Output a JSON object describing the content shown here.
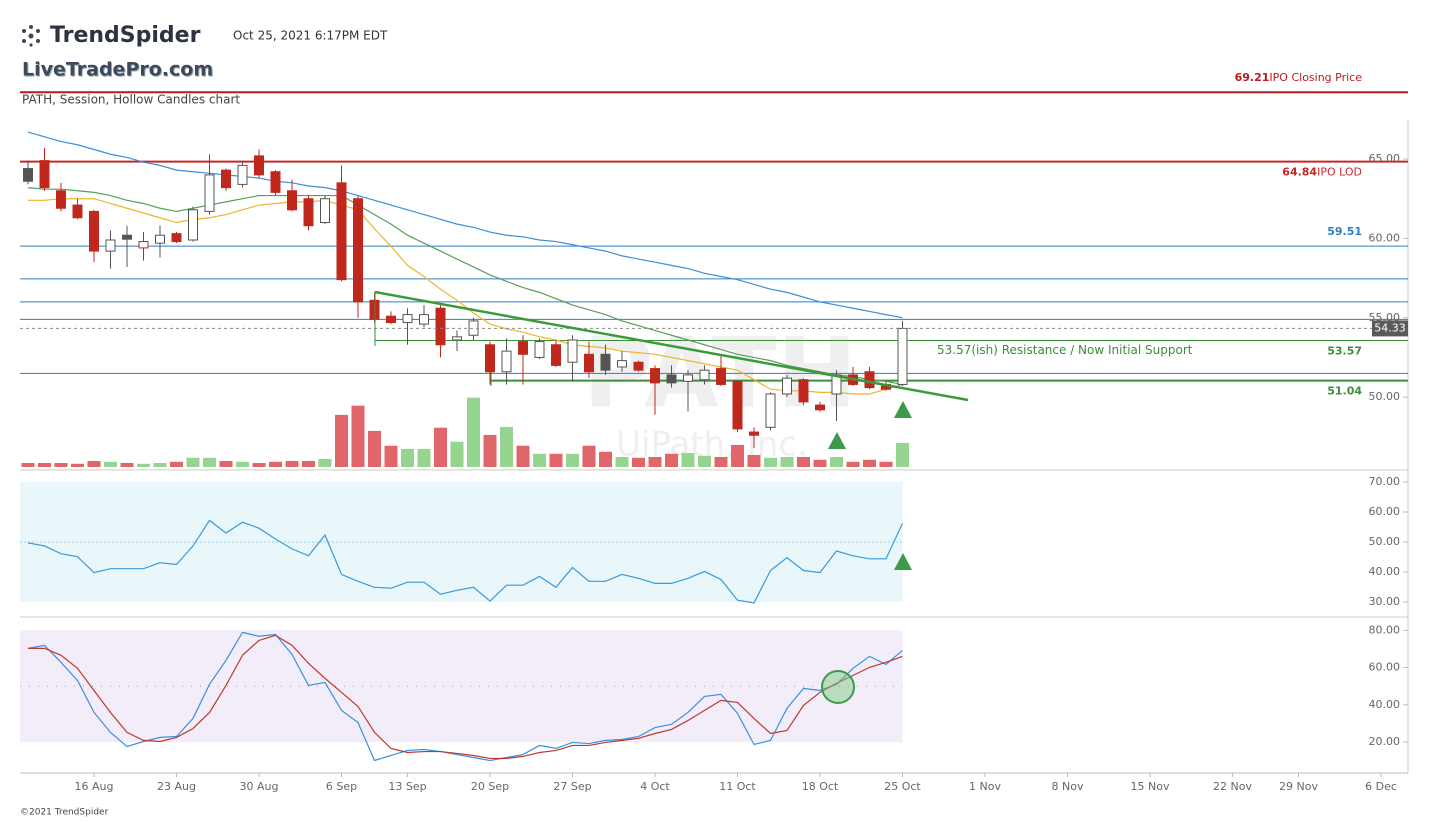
{
  "header": {
    "brand": "TrendSpider",
    "timestamp": "Oct 25, 2021 6:17PM EDT",
    "site": "LiveTradePro.com",
    "chart_label": "PATH, Session, Hollow Candles chart",
    "symbol_watermark": "PATH",
    "company_watermark": "UiPath, Inc.",
    "footer": "©2021 TrendSpider"
  },
  "chart_data": [
    {
      "type": "candlestick",
      "categories": [
        null,
        null,
        null,
        null,
        "16 Aug",
        null,
        null,
        null,
        null,
        "23 Aug",
        null,
        null,
        null,
        null,
        "30 Aug",
        null,
        null,
        null,
        null,
        "6 Sep",
        null,
        null,
        null,
        "13 Sep",
        null,
        null,
        null,
        null,
        "20 Sep",
        null,
        null,
        null,
        null,
        "27 Sep",
        null,
        null,
        null,
        null,
        "4 Oct",
        null,
        null,
        null,
        null,
        "11 Oct",
        null,
        null,
        null,
        null,
        "18 Oct",
        null,
        null,
        null,
        null,
        "25 Oct",
        null,
        null,
        null,
        null,
        "1 Nov",
        null,
        null,
        null,
        null,
        "8 Nov",
        null,
        null,
        null,
        null,
        "15 Nov",
        null,
        null,
        null,
        null,
        "22 Nov",
        null,
        null,
        null,
        "29 Nov",
        null,
        null,
        null,
        null,
        "6 Dec"
      ],
      "open": [
        64.4,
        64.9,
        63.0,
        62.1,
        61.7,
        59.2,
        60.2,
        59.4,
        59.7,
        60.3,
        59.9,
        61.7,
        64.3,
        63.4,
        65.2,
        64.2,
        63.0,
        62.5,
        61.0,
        63.5,
        62.5,
        56.1,
        55.1,
        54.7,
        54.6,
        55.6,
        53.6,
        53.9,
        53.3,
        51.6,
        53.5,
        52.5,
        53.3,
        52.2,
        52.7,
        52.7,
        51.9,
        52.2,
        51.8,
        51.4,
        51.0,
        51.1,
        51.8,
        51.0,
        47.8,
        48.1,
        50.2,
        51.1,
        49.5,
        50.2,
        51.4,
        51.6,
        50.8,
        50.8,
        null,
        null,
        null,
        null,
        null,
        null,
        null,
        null,
        null,
        null,
        null,
        null,
        null,
        null,
        null,
        null,
        null,
        null,
        null,
        null,
        null,
        null,
        null,
        null,
        null,
        null,
        null,
        null,
        null
      ],
      "high": [
        64.9,
        65.7,
        63.5,
        62.5,
        61.8,
        60.5,
        60.8,
        60.4,
        60.8,
        60.4,
        62.0,
        65.3,
        64.4,
        64.8,
        65.6,
        64.3,
        63.7,
        62.7,
        62.7,
        64.6,
        62.7,
        56.6,
        55.4,
        55.6,
        55.8,
        55.8,
        54.2,
        55.0,
        53.5,
        53.7,
        53.9,
        53.7,
        53.6,
        53.9,
        53.5,
        53.3,
        52.9,
        52.3,
        52.0,
        52.0,
        51.7,
        52.0,
        52.6,
        51.1,
        48.1,
        50.3,
        51.4,
        51.2,
        49.7,
        51.7,
        51.9,
        51.9,
        51.0,
        54.8,
        null,
        null,
        null,
        null,
        null,
        null,
        null,
        null,
        null,
        null,
        null,
        null,
        null,
        null,
        null,
        null,
        null,
        null,
        null,
        null,
        null,
        null,
        null,
        null,
        null,
        null,
        null,
        null,
        null
      ],
      "low": [
        63.4,
        63.0,
        61.7,
        61.2,
        58.5,
        58.1,
        58.2,
        58.6,
        58.8,
        59.7,
        59.8,
        61.5,
        63.0,
        63.2,
        63.8,
        62.7,
        61.7,
        60.5,
        60.9,
        57.3,
        55.0,
        54.7,
        54.6,
        53.3,
        54.4,
        52.5,
        52.9,
        53.6,
        50.8,
        50.8,
        50.8,
        52.4,
        51.9,
        51.0,
        51.2,
        51.4,
        51.6,
        51.6,
        48.9,
        50.6,
        49.1,
        50.8,
        50.7,
        47.8,
        46.8,
        47.9,
        50.0,
        49.5,
        49.1,
        48.5,
        50.7,
        50.5,
        50.4,
        50.7,
        null,
        null,
        null,
        null,
        null,
        null,
        null,
        null,
        null,
        null,
        null,
        null,
        null,
        null,
        null,
        null,
        null,
        null,
        null,
        null,
        null,
        null,
        null,
        null,
        null,
        null,
        null,
        null,
        null
      ],
      "close": [
        63.6,
        63.2,
        61.9,
        61.3,
        59.2,
        59.9,
        59.95,
        59.8,
        60.2,
        59.8,
        61.8,
        64.0,
        63.2,
        64.6,
        64.0,
        62.9,
        61.8,
        60.8,
        62.5,
        57.4,
        56.0,
        54.9,
        54.7,
        55.2,
        55.2,
        53.3,
        53.8,
        54.8,
        51.6,
        52.9,
        52.7,
        53.5,
        52.0,
        53.6,
        51.6,
        51.7,
        52.3,
        51.7,
        50.9,
        50.9,
        51.4,
        51.7,
        50.8,
        48.0,
        47.6,
        50.2,
        51.2,
        49.7,
        49.2,
        51.4,
        50.8,
        50.6,
        50.5,
        54.33,
        null,
        null,
        null,
        null,
        null,
        null,
        null,
        null,
        null,
        null,
        null,
        null,
        null,
        null,
        null,
        null,
        null,
        null,
        null,
        null,
        null,
        null,
        null,
        null,
        null,
        null,
        null,
        null,
        null
      ],
      "volume": [
        1,
        1,
        1,
        0.8,
        1.5,
        1.3,
        1,
        0.8,
        1,
        1.3,
        2.3,
        2.3,
        1.5,
        1.3,
        1,
        1.3,
        1.5,
        1.5,
        2,
        13,
        15.3,
        9,
        5.3,
        4.5,
        4.5,
        9.8,
        6.3,
        17.3,
        8,
        10,
        5.3,
        3.3,
        3.3,
        3.3,
        5.3,
        3.8,
        2.5,
        2.3,
        2.5,
        3.3,
        3.5,
        2.8,
        2.5,
        5.5,
        3,
        2.3,
        2.5,
        2.5,
        1.8,
        2.5,
        1.3,
        1.8,
        1.3,
        6,
        null,
        null,
        null,
        null,
        null,
        null,
        null,
        null,
        null,
        null,
        null,
        null,
        null,
        null,
        null,
        null,
        null,
        null,
        null,
        null,
        null,
        null,
        null,
        null,
        null,
        null,
        null,
        null,
        null
      ],
      "volume_ylim": [
        0,
        95
      ],
      "up_color": "#555555",
      "down_color": "#c0281e",
      "volume_up_color": "#95d590",
      "volume_down_color": "#e0666a",
      "overlays": [
        {
          "color": "#3b8fd9",
          "values": [
            66.7,
            66.4,
            66.1,
            65.9,
            65.6,
            65.3,
            65.1,
            64.8,
            64.6,
            64.3,
            64.2,
            64.1,
            64.0,
            63.9,
            63.8,
            63.6,
            63.5,
            63.3,
            63.2,
            63.0,
            62.7,
            62.4,
            62.1,
            61.8,
            61.5,
            61.2,
            60.9,
            60.7,
            60.4,
            60.2,
            60.1,
            59.9,
            59.8,
            59.6,
            59.4,
            59.2,
            58.9,
            58.7,
            58.5,
            58.3,
            58.1,
            57.8,
            57.6,
            57.4,
            57.1,
            56.8,
            56.6,
            56.3,
            56.0,
            55.8,
            55.6,
            55.4,
            55.2,
            55.0,
            null,
            null,
            null,
            null,
            null,
            null,
            null,
            null,
            null,
            null,
            null,
            null,
            null,
            null,
            null,
            null,
            null,
            null,
            null,
            null,
            null,
            null,
            null,
            null,
            null,
            null,
            null,
            null,
            null
          ]
        },
        {
          "color": "#5a9e5a",
          "values": [
            63.2,
            63.1,
            63.1,
            63.0,
            62.9,
            62.7,
            62.4,
            62.2,
            61.9,
            61.7,
            61.9,
            62.1,
            62.3,
            62.5,
            62.7,
            62.7,
            62.7,
            62.7,
            62.7,
            62.7,
            62.1,
            61.5,
            60.9,
            60.2,
            59.7,
            59.2,
            58.7,
            58.2,
            57.7,
            57.3,
            56.9,
            56.6,
            56.2,
            55.8,
            55.5,
            55.2,
            54.8,
            54.5,
            54.2,
            53.9,
            53.6,
            53.3,
            53.0,
            52.7,
            52.5,
            52.3,
            52.0,
            51.8,
            51.6,
            51.4,
            51.3,
            51.1,
            51.0,
            50.8,
            null,
            null,
            null,
            null,
            null,
            null,
            null,
            null,
            null,
            null,
            null,
            null,
            null,
            null,
            null,
            null,
            null,
            null,
            null,
            null,
            null,
            null,
            null,
            null,
            null,
            null,
            null,
            null,
            null
          ]
        },
        {
          "color": "#f0b429",
          "values": [
            62.4,
            62.4,
            62.5,
            62.5,
            62.5,
            62.2,
            61.9,
            61.6,
            61.3,
            61.0,
            61.2,
            61.3,
            61.5,
            61.8,
            62.1,
            62.2,
            62.3,
            62.3,
            62.4,
            62.1,
            61.8,
            60.6,
            59.5,
            58.3,
            57.6,
            56.8,
            56.1,
            55.3,
            54.6,
            54.3,
            54.1,
            53.8,
            53.6,
            53.3,
            53.2,
            53.1,
            52.9,
            52.8,
            52.7,
            52.5,
            52.3,
            52.1,
            51.9,
            51.7,
            51.1,
            50.5,
            50.4,
            50.4,
            50.3,
            50.3,
            50.2,
            50.2,
            50.5,
            50.8,
            null,
            null,
            null,
            null,
            null,
            null,
            null,
            null,
            null,
            null,
            null,
            null,
            null,
            null,
            null,
            null,
            null,
            null,
            null,
            null,
            null,
            null,
            null,
            null,
            null,
            null,
            null,
            null,
            null
          ]
        }
      ],
      "ylim": [
        45.6,
        69.6
      ],
      "yticks": [
        {
          "value": 65,
          "label": "65.00"
        },
        {
          "value": 60,
          "label": "60.00"
        },
        {
          "value": 55,
          "label": "55.00"
        },
        {
          "value": 50,
          "label": "50.00"
        }
      ],
      "levels": [
        {
          "value": 69.21,
          "label": "IPO Closing Price",
          "color": "#b71c1c",
          "show_value": true,
          "label_position": "above",
          "width": 2
        },
        {
          "value": 64.84,
          "label": "IPO LOD",
          "color": "#c62828",
          "show_value": true,
          "label_position": "below",
          "width": 2
        },
        {
          "value": 59.51,
          "color": "#2b7fc7",
          "show_value": true,
          "label_position": "above",
          "width": 1
        },
        {
          "value": 57.45,
          "color": "#2b7fc7",
          "show_value": false,
          "width": 1
        },
        {
          "value": 56.0,
          "color": "#2b7fc7",
          "show_value": false,
          "width": 1
        },
        {
          "value": 54.9,
          "color": "#2b7fc7",
          "show_value": false,
          "width": 1
        },
        {
          "value": 53.57,
          "color": "#3a8f3a",
          "show_value": true,
          "label_position": "below",
          "width": 1
        },
        {
          "value": 51.5,
          "color": "#2b7fc7",
          "show_value": false,
          "width": 1
        },
        {
          "value": 51.04,
          "color": "#3a8f3a",
          "show_value": true,
          "label_position": "below",
          "width": 2
        }
      ],
      "last_price": 54.33,
      "annotation": "53.57(ish) Resistance / Now Initial Support"
    },
    {
      "type": "line",
      "color": "#3a9ad9",
      "band_color": "#eaf7fa",
      "values": [
        49.7,
        48.7,
        46.1,
        45.1,
        39.8,
        41.1,
        41.1,
        41.1,
        43.1,
        42.5,
        48.7,
        57.2,
        53.0,
        56.6,
        54.6,
        51.0,
        47.7,
        45.4,
        52.3,
        39.2,
        36.9,
        34.9,
        34.6,
        36.6,
        36.6,
        32.6,
        33.9,
        34.9,
        30.3,
        35.6,
        35.6,
        38.5,
        34.9,
        41.5,
        36.9,
        36.9,
        39.2,
        37.9,
        36.2,
        36.2,
        37.9,
        40.2,
        37.5,
        30.6,
        29.7,
        40.5,
        44.8,
        40.5,
        39.8,
        47.0,
        45.4,
        44.4,
        44.4,
        56.2
      ],
      "ylim": [
        28,
        72
      ],
      "band": [
        30,
        70
      ],
      "midline": 50,
      "yticks": [
        {
          "value": 70,
          "label": "70.00"
        },
        {
          "value": 60,
          "label": "60.00"
        },
        {
          "value": 50,
          "label": "50.00"
        },
        {
          "value": 40,
          "label": "40.00"
        },
        {
          "value": 30,
          "label": "30.00"
        }
      ]
    },
    {
      "type": "line",
      "band_color": "#f2edf9",
      "series": [
        {
          "color": "#3a8fe0",
          "values": [
            70.3,
            71.9,
            62.8,
            53.1,
            35.9,
            25.2,
            17.6,
            20.3,
            22.5,
            23.0,
            32.7,
            51.0,
            63.9,
            78.9,
            76.8,
            77.8,
            67.1,
            50.4,
            52.0,
            37.0,
            30.5,
            10.1,
            12.8,
            15.5,
            16.0,
            14.9,
            13.3,
            11.7,
            10.1,
            11.7,
            13.3,
            18.2,
            16.6,
            19.8,
            19.2,
            20.9,
            21.4,
            23.0,
            27.8,
            29.5,
            35.9,
            44.5,
            45.6,
            35.4,
            18.7,
            20.9,
            38.1,
            48.8,
            47.7,
            51.0,
            59.6,
            66.0,
            61.7,
            69.2
          ]
        },
        {
          "color": "#c0392b",
          "values": [
            70.3,
            70.3,
            66.6,
            59.6,
            47.7,
            35.9,
            25.2,
            20.9,
            20.3,
            22.5,
            27.3,
            35.9,
            50.4,
            66.6,
            74.6,
            77.3,
            71.9,
            62.3,
            54.2,
            46.7,
            39.1,
            25.2,
            16.6,
            14.4,
            14.9,
            14.9,
            13.9,
            12.8,
            11.2,
            11.2,
            12.3,
            14.4,
            15.5,
            18.2,
            18.2,
            19.8,
            20.9,
            22.0,
            24.6,
            26.8,
            31.6,
            37.0,
            42.4,
            41.3,
            32.7,
            24.6,
            26.2,
            39.7,
            46.7,
            51.5,
            55.8,
            60.1,
            62.8,
            66.0
          ]
        }
      ],
      "ylim": [
        5,
        85
      ],
      "band": [
        20,
        80
      ],
      "midline": 50,
      "yticks": [
        {
          "value": 80,
          "label": "80.00"
        },
        {
          "value": 60,
          "label": "60.00"
        },
        {
          "value": 40,
          "label": "40.00"
        },
        {
          "value": 20,
          "label": "20.00"
        }
      ]
    }
  ]
}
